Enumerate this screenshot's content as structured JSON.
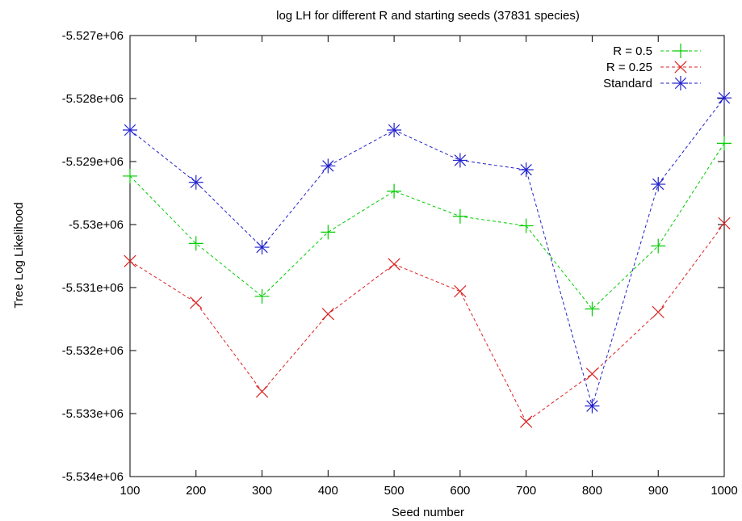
{
  "chart_data": {
    "type": "line",
    "title": "log LH for different R and starting seeds (37831 species)",
    "xlabel": "Seed number",
    "ylabel": "Tree Log Likelihood",
    "x": [
      100,
      200,
      300,
      400,
      500,
      600,
      700,
      800,
      900,
      1000
    ],
    "xlim": [
      100,
      1000
    ],
    "ylim": [
      -5534000,
      -5527000
    ],
    "xticks": [
      "100",
      "200",
      "300",
      "400",
      "500",
      "600",
      "700",
      "800",
      "900",
      "1000"
    ],
    "yticks": [
      "-5.527e+06",
      "-5.528e+06",
      "-5.529e+06",
      "-5.53e+06",
      "-5.531e+06",
      "-5.532e+06",
      "-5.533e+06",
      "-5.534e+06"
    ],
    "ytick_values": [
      -5527000,
      -5528000,
      -5529000,
      -5530000,
      -5531000,
      -5532000,
      -5533000,
      -5534000
    ],
    "grid": false,
    "legend_position": "top-right",
    "series": [
      {
        "name": "R = 0.5",
        "color": "#00cc00",
        "marker": "plus",
        "values": [
          -5529230,
          -5530300,
          -5531140,
          -5530120,
          -5529470,
          -5529870,
          -5530020,
          -5531340,
          -5530340,
          -5528710
        ]
      },
      {
        "name": "R = 0.25",
        "color": "#dd2222",
        "marker": "cross",
        "values": [
          -5530580,
          -5531240,
          -5532650,
          -5531420,
          -5530630,
          -5531060,
          -5533130,
          -5532370,
          -5531390,
          -5529980
        ]
      },
      {
        "name": "Standard",
        "color": "#2222cc",
        "marker": "star",
        "values": [
          -5528500,
          -5529330,
          -5530360,
          -5529070,
          -5528500,
          -5528980,
          -5529130,
          -5532880,
          -5529360,
          -5527990
        ]
      }
    ]
  }
}
